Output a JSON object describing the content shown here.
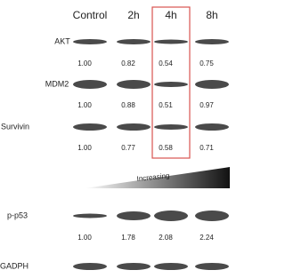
{
  "columns": [
    "Control",
    "2h",
    "4h",
    "8h"
  ],
  "blots": [
    {
      "label": "AKT",
      "values": [
        "1.00",
        "0.82",
        "0.54",
        "0.75"
      ]
    },
    {
      "label": "MDM2",
      "values": [
        "1.00",
        "0.88",
        "0.51",
        "0.97"
      ]
    },
    {
      "label": "Survivin",
      "values": [
        "1.00",
        "0.77",
        "0.58",
        "0.71"
      ]
    },
    {
      "label": "p-p53",
      "values": [
        "1.00",
        "1.78",
        "2.08",
        "2.24"
      ]
    },
    {
      "label": "GADPH",
      "values": []
    }
  ],
  "increasing_label": "Increasing"
}
